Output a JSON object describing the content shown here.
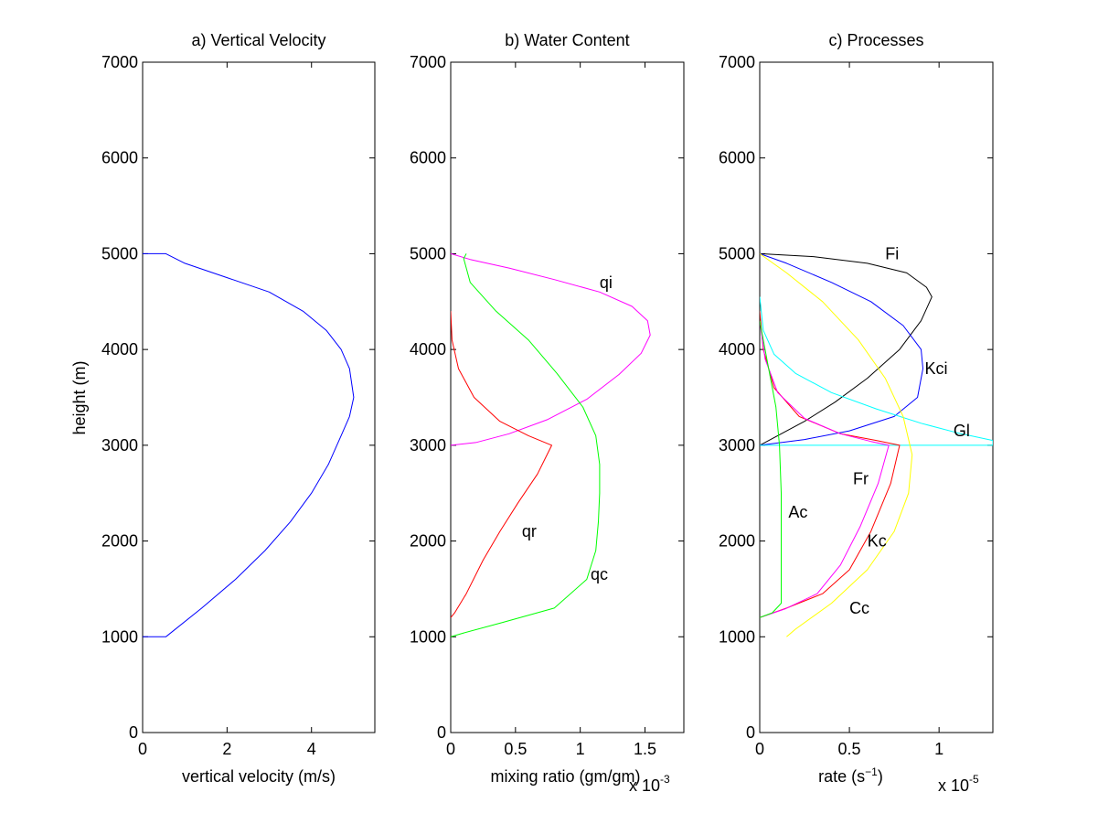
{
  "figure": {
    "shared_ylabel": "height (m)"
  },
  "chart_data": [
    {
      "type": "line",
      "title": "a) Vertical Velocity",
      "xlabel": "vertical velocity (m/s)",
      "ylabel": "height (m)",
      "xlim": [
        0,
        5.5
      ],
      "ylim": [
        0,
        7000
      ],
      "xticks": [
        0,
        2,
        4
      ],
      "xtick_labels": [
        "0",
        "2",
        "4"
      ],
      "yticks": [
        0,
        1000,
        2000,
        3000,
        4000,
        5000,
        6000,
        7000
      ],
      "ytick_labels": [
        "0",
        "1000",
        "2000",
        "3000",
        "4000",
        "5000",
        "6000",
        "7000"
      ],
      "exponent_label": "",
      "grid": false,
      "series": [
        {
          "label": "",
          "color": "#0000ff",
          "points": [
            [
              0,
              1000
            ],
            [
              0.55,
              1000
            ],
            [
              1.4,
              1300
            ],
            [
              2.2,
              1600
            ],
            [
              2.9,
              1900
            ],
            [
              3.5,
              2200
            ],
            [
              4.0,
              2500
            ],
            [
              4.4,
              2800
            ],
            [
              4.7,
              3100
            ],
            [
              4.9,
              3300
            ],
            [
              5.0,
              3500
            ],
            [
              4.9,
              3800
            ],
            [
              4.7,
              4000
            ],
            [
              4.35,
              4200
            ],
            [
              3.8,
              4400
            ],
            [
              3.0,
              4600
            ],
            [
              2.0,
              4750
            ],
            [
              1.0,
              4900
            ],
            [
              0.55,
              5000
            ],
            [
              0,
              5000
            ]
          ]
        }
      ]
    },
    {
      "type": "line",
      "title": "b) Water Content",
      "xlabel": "mixing ratio (gm/gm)",
      "ylabel": "",
      "xlim": [
        0,
        1.8
      ],
      "ylim": [
        0,
        7000
      ],
      "xticks": [
        0,
        0.5,
        1,
        1.5
      ],
      "xtick_labels": [
        "0",
        "0.5",
        "1",
        "1.5"
      ],
      "yticks": [
        0,
        1000,
        2000,
        3000,
        4000,
        5000,
        6000,
        7000
      ],
      "ytick_labels": [
        "0",
        "1000",
        "2000",
        "3000",
        "4000",
        "5000",
        "6000",
        "7000"
      ],
      "exponent_label": "x 10",
      "exponent_power": "-3",
      "grid": false,
      "series": [
        {
          "label": "qi",
          "color": "#ff00ff",
          "label_pos": [
            1.15,
            4700
          ],
          "points": [
            [
              0,
              3000
            ],
            [
              0.2,
              3030
            ],
            [
              0.45,
              3120
            ],
            [
              0.75,
              3270
            ],
            [
              1.05,
              3480
            ],
            [
              1.3,
              3740
            ],
            [
              1.47,
              3960
            ],
            [
              1.54,
              4150
            ],
            [
              1.52,
              4300
            ],
            [
              1.4,
              4450
            ],
            [
              1.15,
              4600
            ],
            [
              0.8,
              4730
            ],
            [
              0.45,
              4850
            ],
            [
              0.15,
              4940
            ],
            [
              0,
              5000
            ]
          ]
        },
        {
          "label": "qr",
          "color": "#ff0000",
          "label_pos": [
            0.55,
            2100
          ],
          "points": [
            [
              0,
              4400
            ],
            [
              0.01,
              4100
            ],
            [
              0.06,
              3800
            ],
            [
              0.18,
              3500
            ],
            [
              0.38,
              3250
            ],
            [
              0.6,
              3100
            ],
            [
              0.78,
              3000
            ],
            [
              0.67,
              2700
            ],
            [
              0.52,
              2400
            ],
            [
              0.38,
              2100
            ],
            [
              0.25,
              1800
            ],
            [
              0.12,
              1450
            ],
            [
              0.03,
              1250
            ],
            [
              0,
              1200
            ]
          ]
        },
        {
          "label": "qc",
          "color": "#00ff00",
          "label_pos": [
            1.08,
            1650
          ],
          "points": [
            [
              0.12,
              5000
            ],
            [
              0.1,
              4950
            ],
            [
              0.15,
              4700
            ],
            [
              0.35,
              4400
            ],
            [
              0.6,
              4100
            ],
            [
              0.82,
              3750
            ],
            [
              1.02,
              3400
            ],
            [
              1.12,
              3100
            ],
            [
              1.15,
              2800
            ],
            [
              1.15,
              2500
            ],
            [
              1.14,
              2200
            ],
            [
              1.12,
              1900
            ],
            [
              1.05,
              1600
            ],
            [
              0.8,
              1300
            ],
            [
              0.4,
              1150
            ],
            [
              0.1,
              1040
            ],
            [
              0,
              1000
            ]
          ]
        }
      ]
    },
    {
      "type": "line",
      "title": "c) Processes",
      "xlabel": "rate (s⁻¹)",
      "xlabel_base": "rate (s",
      "xlabel_sup": "−1",
      "xlabel_close": ")",
      "ylabel": "",
      "xlim": [
        0,
        1.3
      ],
      "ylim": [
        0,
        7000
      ],
      "xticks": [
        0,
        0.5,
        1
      ],
      "xtick_labels": [
        "0",
        "0.5",
        "1"
      ],
      "yticks": [
        0,
        1000,
        2000,
        3000,
        4000,
        5000,
        6000,
        7000
      ],
      "ytick_labels": [
        "0",
        "1000",
        "2000",
        "3000",
        "4000",
        "5000",
        "6000",
        "7000"
      ],
      "exponent_label": "x 10",
      "exponent_power": "-5",
      "grid": false,
      "series": [
        {
          "label": "Fi",
          "color": "#000000",
          "label_pos": [
            0.7,
            5000
          ],
          "points": [
            [
              0,
              5000
            ],
            [
              0.3,
              4970
            ],
            [
              0.6,
              4900
            ],
            [
              0.82,
              4800
            ],
            [
              0.93,
              4650
            ],
            [
              0.96,
              4550
            ],
            [
              0.9,
              4300
            ],
            [
              0.78,
              4000
            ],
            [
              0.6,
              3700
            ],
            [
              0.42,
              3450
            ],
            [
              0.25,
              3250
            ],
            [
              0.1,
              3100
            ],
            [
              0,
              3000
            ]
          ]
        },
        {
          "label": "Kci",
          "color": "#0000ff",
          "label_pos": [
            0.92,
            3800
          ],
          "points": [
            [
              0,
              5000
            ],
            [
              0.15,
              4900
            ],
            [
              0.4,
              4700
            ],
            [
              0.62,
              4500
            ],
            [
              0.8,
              4250
            ],
            [
              0.9,
              4000
            ],
            [
              0.91,
              3800
            ],
            [
              0.88,
              3500
            ],
            [
              0.75,
              3300
            ],
            [
              0.5,
              3150
            ],
            [
              0.25,
              3060
            ],
            [
              0,
              3000
            ]
          ]
        },
        {
          "label": "Gl",
          "color": "#00ffff",
          "label_pos": [
            1.08,
            3150
          ],
          "points": [
            [
              0,
              4550
            ],
            [
              0.02,
              4200
            ],
            [
              0.08,
              3950
            ],
            [
              0.2,
              3750
            ],
            [
              0.4,
              3550
            ],
            [
              0.65,
              3380
            ],
            [
              0.9,
              3230
            ],
            [
              1.1,
              3130
            ],
            [
              1.3,
              3050
            ],
            [
              1.3,
              3000
            ],
            [
              0,
              3000
            ]
          ]
        },
        {
          "label": "Cc",
          "color": "#ffff00",
          "label_pos": [
            0.5,
            1300
          ],
          "points": [
            [
              0,
              5000
            ],
            [
              0.15,
              4800
            ],
            [
              0.35,
              4500
            ],
            [
              0.55,
              4100
            ],
            [
              0.7,
              3700
            ],
            [
              0.8,
              3300
            ],
            [
              0.85,
              2900
            ],
            [
              0.83,
              2500
            ],
            [
              0.75,
              2100
            ],
            [
              0.6,
              1700
            ],
            [
              0.4,
              1350
            ],
            [
              0.2,
              1080
            ],
            [
              0.15,
              1000
            ]
          ]
        },
        {
          "label": "Kc",
          "color": "#ff0000",
          "label_pos": [
            0.6,
            2000
          ],
          "points": [
            [
              0,
              4400
            ],
            [
              0.02,
              4000
            ],
            [
              0.08,
              3600
            ],
            [
              0.22,
              3300
            ],
            [
              0.45,
              3120
            ],
            [
              0.65,
              3050
            ],
            [
              0.78,
              3000
            ],
            [
              0.73,
              2600
            ],
            [
              0.62,
              2100
            ],
            [
              0.5,
              1700
            ],
            [
              0.35,
              1450
            ],
            [
              0.15,
              1300
            ],
            [
              0,
              1200
            ]
          ]
        },
        {
          "label": "Fr",
          "color": "#ff00ff",
          "label_pos": [
            0.52,
            2650
          ],
          "points": [
            [
              0,
              4300
            ],
            [
              0.03,
              3900
            ],
            [
              0.1,
              3550
            ],
            [
              0.25,
              3280
            ],
            [
              0.45,
              3120
            ],
            [
              0.62,
              3040
            ],
            [
              0.72,
              3000
            ],
            [
              0.66,
              2600
            ],
            [
              0.56,
              2150
            ],
            [
              0.45,
              1750
            ],
            [
              0.32,
              1450
            ],
            [
              0.14,
              1290
            ],
            [
              0,
              1200
            ]
          ]
        },
        {
          "label": "Ac",
          "color": "#00ff00",
          "label_pos": [
            0.16,
            2300
          ],
          "points": [
            [
              0,
              4300
            ],
            [
              0.04,
              3900
            ],
            [
              0.09,
              3400
            ],
            [
              0.11,
              3000
            ],
            [
              0.12,
              2500
            ],
            [
              0.12,
              2000
            ],
            [
              0.12,
              1600
            ],
            [
              0.12,
              1350
            ],
            [
              0.07,
              1250
            ],
            [
              0,
              1200
            ]
          ]
        }
      ]
    }
  ]
}
